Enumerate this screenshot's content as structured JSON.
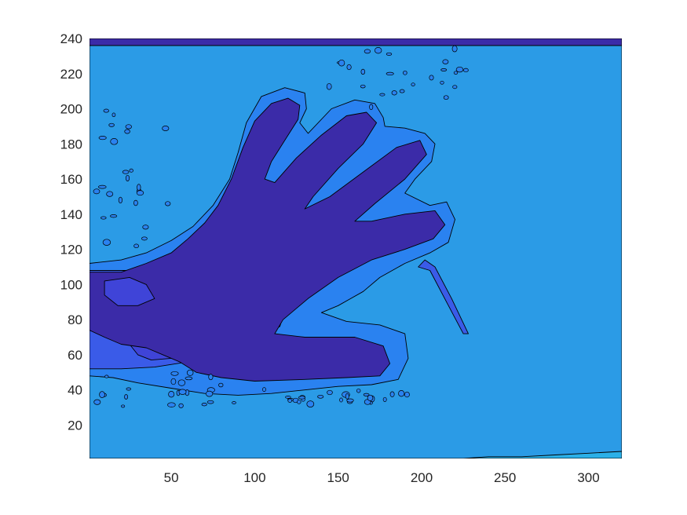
{
  "chart_data": {
    "type": "contourf",
    "title": "",
    "xlabel": "",
    "ylabel": "",
    "xlim": [
      1,
      320
    ],
    "ylim": [
      1,
      240
    ],
    "x_ticks": [
      50,
      100,
      150,
      200,
      250,
      300
    ],
    "y_ticks": [
      20,
      40,
      60,
      80,
      100,
      120,
      140,
      160,
      180,
      200,
      220,
      240
    ],
    "grid": false,
    "legend": "none",
    "contour_line_color": "#000000",
    "colors": {
      "background_level": "#2b9be6",
      "halo_level": "#2a82f0",
      "mid_level": "#3a5be8",
      "inner_level": "#3f44d8",
      "hand_level": "#3b2ba8",
      "lower_right_level": "#2bb0e8",
      "top_band_level": "#3b2ba8"
    },
    "regions": [
      {
        "name": "background",
        "color": "background_level",
        "points": [
          [
            1,
            1
          ],
          [
            320,
            1
          ],
          [
            320,
            240
          ],
          [
            1,
            240
          ]
        ]
      },
      {
        "name": "top-band",
        "color": "top_band_level",
        "points": [
          [
            1,
            236
          ],
          [
            320,
            236
          ],
          [
            320,
            240
          ],
          [
            1,
            240
          ]
        ]
      },
      {
        "name": "lower-right-patch",
        "color": "lower_right_level",
        "points": [
          [
            220,
            1
          ],
          [
            320,
            1
          ],
          [
            320,
            5
          ],
          [
            300,
            4
          ],
          [
            280,
            3
          ],
          [
            260,
            2
          ],
          [
            240,
            2
          ],
          [
            225,
            1
          ]
        ]
      },
      {
        "name": "hand-halo",
        "color": "halo_level",
        "points": [
          [
            1,
            112
          ],
          [
            20,
            114
          ],
          [
            35,
            118
          ],
          [
            50,
            125
          ],
          [
            63,
            133
          ],
          [
            75,
            145
          ],
          [
            85,
            160
          ],
          [
            90,
            175
          ],
          [
            95,
            192
          ],
          [
            104,
            207
          ],
          [
            118,
            212
          ],
          [
            130,
            209
          ],
          [
            131,
            200
          ],
          [
            127,
            192
          ],
          [
            132,
            186
          ],
          [
            146,
            200
          ],
          [
            160,
            205
          ],
          [
            172,
            203
          ],
          [
            177,
            195
          ],
          [
            178,
            190
          ],
          [
            190,
            189
          ],
          [
            202,
            186
          ],
          [
            208,
            180
          ],
          [
            206,
            170
          ],
          [
            196,
            160
          ],
          [
            190,
            152
          ],
          [
            205,
            145
          ],
          [
            215,
            147
          ],
          [
            220,
            137
          ],
          [
            216,
            124
          ],
          [
            205,
            118
          ],
          [
            190,
            112
          ],
          [
            175,
            104
          ],
          [
            165,
            96
          ],
          [
            150,
            88
          ],
          [
            140,
            84
          ],
          [
            155,
            79
          ],
          [
            175,
            77
          ],
          [
            190,
            72
          ],
          [
            192,
            58
          ],
          [
            186,
            46
          ],
          [
            170,
            43
          ],
          [
            150,
            42
          ],
          [
            130,
            40
          ],
          [
            110,
            38
          ],
          [
            90,
            37
          ],
          [
            70,
            38
          ],
          [
            50,
            41
          ],
          [
            30,
            44
          ],
          [
            15,
            47
          ],
          [
            1,
            48
          ]
        ]
      },
      {
        "name": "hand-mid",
        "color": "mid_level",
        "points": [
          [
            1,
            108
          ],
          [
            30,
            108
          ],
          [
            60,
            110
          ],
          [
            85,
            116
          ],
          [
            100,
            112
          ],
          [
            110,
            100
          ],
          [
            120,
            90
          ],
          [
            115,
            76
          ],
          [
            100,
            70
          ],
          [
            80,
            62
          ],
          [
            60,
            56
          ],
          [
            40,
            53
          ],
          [
            20,
            52
          ],
          [
            1,
            52
          ]
        ]
      },
      {
        "name": "hand-inner",
        "color": "inner_level",
        "points": [
          [
            30,
            100
          ],
          [
            45,
            98
          ],
          [
            55,
            96
          ],
          [
            65,
            94
          ],
          [
            75,
            92
          ],
          [
            90,
            94
          ],
          [
            100,
            96
          ],
          [
            105,
            88
          ],
          [
            100,
            80
          ],
          [
            90,
            76
          ],
          [
            80,
            72
          ],
          [
            72,
            68
          ],
          [
            62,
            62
          ],
          [
            50,
            58
          ],
          [
            38,
            57
          ],
          [
            30,
            60
          ],
          [
            25,
            66
          ],
          [
            20,
            72
          ],
          [
            18,
            80
          ],
          [
            22,
            90
          ]
        ]
      },
      {
        "name": "hand-core",
        "color": "hand_level",
        "points": [
          [
            1,
            107
          ],
          [
            20,
            107
          ],
          [
            35,
            112
          ],
          [
            50,
            118
          ],
          [
            60,
            126
          ],
          [
            70,
            135
          ],
          [
            78,
            145
          ],
          [
            86,
            160
          ],
          [
            93,
            178
          ],
          [
            100,
            193
          ],
          [
            110,
            203
          ],
          [
            120,
            206
          ],
          [
            127,
            202
          ],
          [
            126,
            194
          ],
          [
            118,
            182
          ],
          [
            110,
            170
          ],
          [
            106,
            160
          ],
          [
            112,
            158
          ],
          [
            125,
            172
          ],
          [
            140,
            185
          ],
          [
            155,
            196
          ],
          [
            167,
            198
          ],
          [
            173,
            192
          ],
          [
            165,
            180
          ],
          [
            150,
            166
          ],
          [
            135,
            150
          ],
          [
            130,
            143
          ],
          [
            145,
            150
          ],
          [
            165,
            164
          ],
          [
            185,
            178
          ],
          [
            199,
            182
          ],
          [
            203,
            174
          ],
          [
            190,
            160
          ],
          [
            172,
            146
          ],
          [
            160,
            136
          ],
          [
            170,
            136
          ],
          [
            190,
            140
          ],
          [
            208,
            142
          ],
          [
            214,
            134
          ],
          [
            207,
            126
          ],
          [
            190,
            120
          ],
          [
            170,
            114
          ],
          [
            150,
            104
          ],
          [
            132,
            92
          ],
          [
            117,
            80
          ],
          [
            112,
            72
          ],
          [
            130,
            70
          ],
          [
            160,
            70
          ],
          [
            177,
            65
          ],
          [
            181,
            55
          ],
          [
            175,
            48
          ],
          [
            155,
            47
          ],
          [
            130,
            46
          ],
          [
            100,
            45
          ],
          [
            80,
            47
          ],
          [
            65,
            50
          ],
          [
            55,
            56
          ],
          [
            45,
            60
          ],
          [
            35,
            64
          ],
          [
            20,
            66
          ],
          [
            10,
            70
          ],
          [
            1,
            74
          ]
        ]
      },
      {
        "name": "palm-inner-left",
        "color": "inner_level",
        "points": [
          [
            10,
            102
          ],
          [
            25,
            104
          ],
          [
            35,
            100
          ],
          [
            40,
            92
          ],
          [
            30,
            88
          ],
          [
            18,
            88
          ],
          [
            10,
            94
          ]
        ]
      },
      {
        "name": "streak-right",
        "color": "mid_level",
        "points": [
          [
            198,
            110
          ],
          [
            205,
            108
          ],
          [
            215,
            90
          ],
          [
            225,
            72
          ],
          [
            228,
            72
          ],
          [
            218,
            92
          ],
          [
            208,
            110
          ],
          [
            202,
            114
          ]
        ]
      }
    ]
  }
}
